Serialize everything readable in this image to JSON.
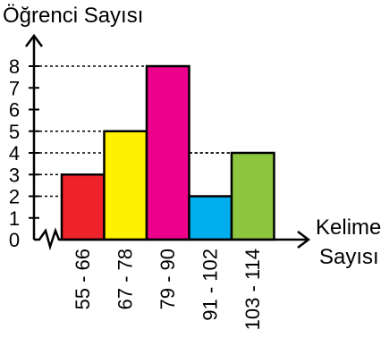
{
  "chart_data": {
    "type": "bar",
    "title": "",
    "ylabel": "Öğrenci Sayısı",
    "xlabel_line1": "Kelime",
    "xlabel_line2": "Sayısı",
    "categories": [
      "55 - 66",
      "67 - 78",
      "79 - 90",
      "91 - 102",
      "103 - 114"
    ],
    "values": [
      3,
      5,
      8,
      2,
      4
    ],
    "colors": [
      "#ee2229",
      "#fff200",
      "#ec008c",
      "#00aeef",
      "#8dc63f"
    ],
    "yticks": [
      "0",
      "1",
      "2",
      "3",
      "4",
      "5",
      "6",
      "7",
      "8"
    ],
    "ylim": [
      0,
      8
    ],
    "grid": false,
    "guide_lines": "dotted",
    "axis_break": true
  }
}
